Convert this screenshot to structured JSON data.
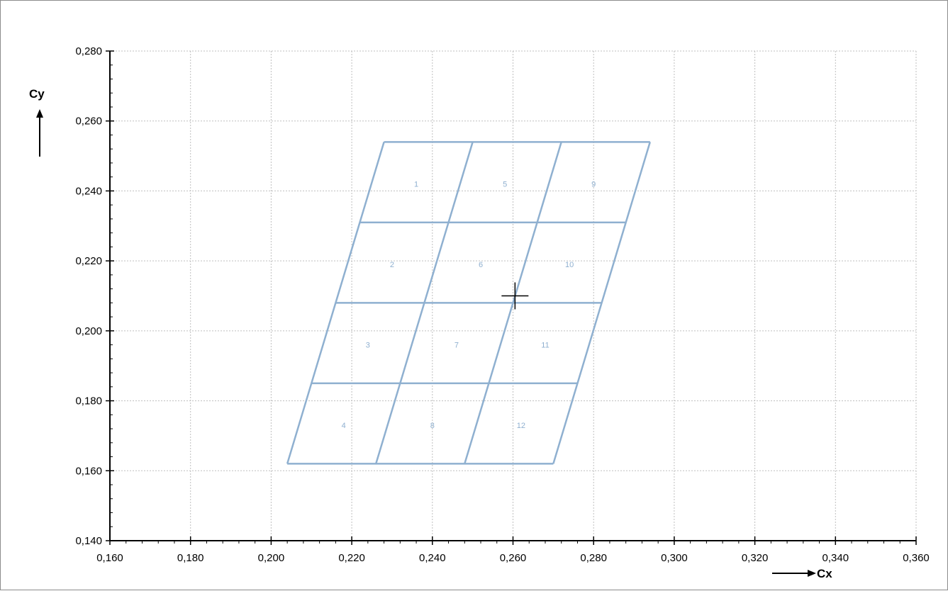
{
  "chart_data": {
    "type": "scatter",
    "title": "",
    "xlabel": "Cx",
    "ylabel": "Cy",
    "xlim": [
      0.16,
      0.36
    ],
    "ylim": [
      0.14,
      0.28
    ],
    "x_ticks": [
      0.16,
      0.18,
      0.2,
      0.22,
      0.24,
      0.26,
      0.28,
      0.3,
      0.32,
      0.34,
      0.36
    ],
    "y_ticks": [
      0.14,
      0.16,
      0.18,
      0.2,
      0.22,
      0.24,
      0.26,
      0.28
    ],
    "x_tick_labels": [
      "0,160",
      "0,180",
      "0,200",
      "0,220",
      "0,240",
      "0,260",
      "0,280",
      "0,300",
      "0,320",
      "0,340",
      "0,360"
    ],
    "y_tick_labels": [
      "0,140",
      "0,160",
      "0,180",
      "0,200",
      "0,220",
      "0,240",
      "0,260",
      "0,280"
    ],
    "grid": true,
    "grid_color": "#bfbfbf",
    "series_color": "#8fb0d0",
    "axis_color": "#000000",
    "grid_lines": {
      "horizontal": [
        {
          "y": 0.254,
          "x_start": 0.228,
          "x_end": 0.294
        },
        {
          "y": 0.231,
          "x_start": 0.222,
          "x_end": 0.288
        },
        {
          "y": 0.208,
          "x_start": 0.216,
          "x_end": 0.282
        },
        {
          "y": 0.185,
          "x_start": 0.21,
          "x_end": 0.276
        },
        {
          "y": 0.162,
          "x_start": 0.204,
          "x_end": 0.27
        }
      ],
      "slanted": [
        {
          "x_top": 0.228,
          "y_top": 0.254,
          "x_bottom": 0.204,
          "y_bottom": 0.162
        },
        {
          "x_top": 0.25,
          "y_top": 0.254,
          "x_bottom": 0.226,
          "y_bottom": 0.162
        },
        {
          "x_top": 0.272,
          "y_top": 0.254,
          "x_bottom": 0.248,
          "y_bottom": 0.162
        },
        {
          "x_top": 0.294,
          "y_top": 0.254,
          "x_bottom": 0.27,
          "y_bottom": 0.162
        }
      ]
    },
    "cells": [
      {
        "label": "1",
        "x": 0.236,
        "y": 0.242
      },
      {
        "label": "5",
        "x": 0.258,
        "y": 0.242
      },
      {
        "label": "9",
        "x": 0.28,
        "y": 0.242
      },
      {
        "label": "2",
        "x": 0.23,
        "y": 0.219
      },
      {
        "label": "6",
        "x": 0.252,
        "y": 0.219
      },
      {
        "label": "10",
        "x": 0.274,
        "y": 0.219
      },
      {
        "label": "3",
        "x": 0.224,
        "y": 0.196
      },
      {
        "label": "7",
        "x": 0.246,
        "y": 0.196
      },
      {
        "label": "11",
        "x": 0.268,
        "y": 0.196
      },
      {
        "label": "4",
        "x": 0.218,
        "y": 0.173
      },
      {
        "label": "8",
        "x": 0.24,
        "y": 0.173
      },
      {
        "label": "12",
        "x": 0.262,
        "y": 0.173
      }
    ],
    "marker": {
      "x": 0.2605,
      "y": 0.21,
      "shape": "crosshair"
    }
  }
}
